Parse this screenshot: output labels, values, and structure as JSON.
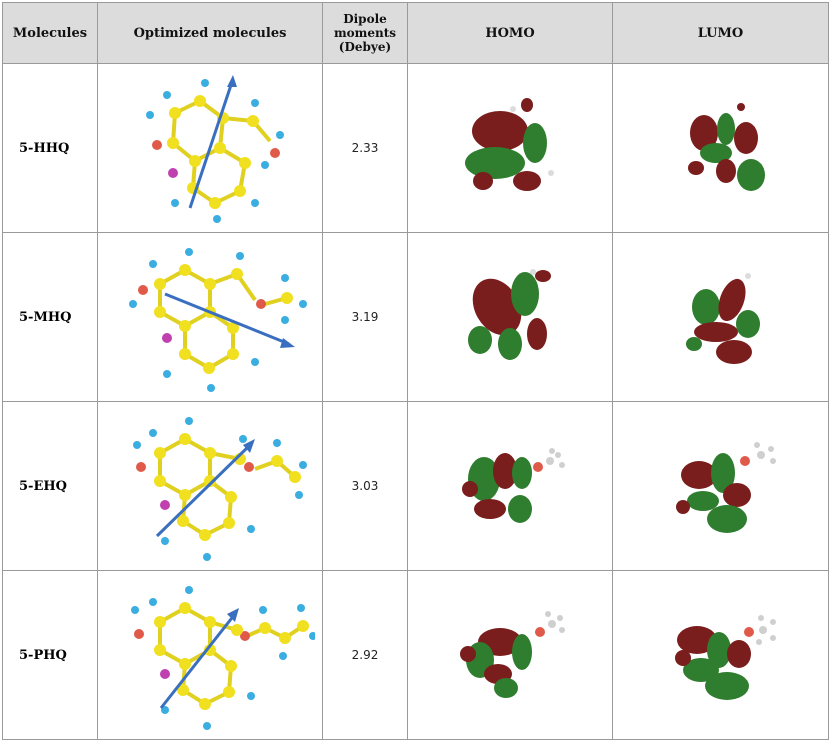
{
  "headers": {
    "molecules": "Molecules",
    "optimized": "Optimized molecules",
    "dipole_line1": "Dipole",
    "dipole_line2": "moments",
    "dipole_line3": "(Debye)",
    "homo": "HOMO",
    "lumo": "LUMO"
  },
  "rows": [
    {
      "name": "5-HHQ",
      "dipole": "2.33"
    },
    {
      "name": "5-MHQ",
      "dipole": "3.19"
    },
    {
      "name": "5-EHQ",
      "dipole": "3.03"
    },
    {
      "name": "5-PHQ",
      "dipole": "2.92"
    }
  ],
  "colors": {
    "carbon": "#f0e020",
    "hydrogen": "#3aaee0",
    "oxygen": "#e05a4a",
    "nitrogen": "#c040b0",
    "arrow": "#3a6fc0",
    "orbital_red": "#7a1d1d",
    "orbital_green": "#2f7d2f"
  }
}
